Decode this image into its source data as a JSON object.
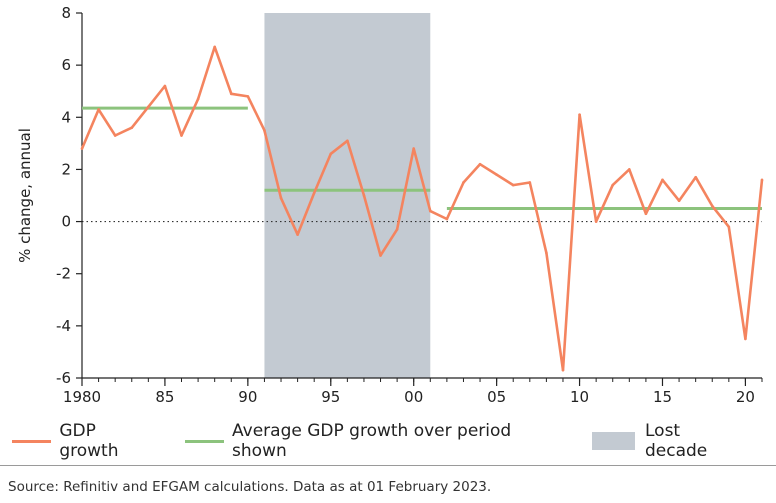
{
  "colors": {
    "gdp": "#f4845f",
    "average": "#8cc37d",
    "shade": "#c3cad2",
    "axis": "#222222"
  },
  "chart_data": {
    "type": "line",
    "ylabel": "% change, annual",
    "ylim": [
      -6,
      8
    ],
    "xlim": [
      1980,
      2021
    ],
    "yticks": [
      -6,
      -4,
      -2,
      0,
      2,
      4,
      6,
      8
    ],
    "xticks": [
      {
        "value": 1980,
        "label": "1980"
      },
      {
        "value": 1985,
        "label": "85"
      },
      {
        "value": 1990,
        "label": "90"
      },
      {
        "value": 1995,
        "label": "95"
      },
      {
        "value": 2000,
        "label": "00"
      },
      {
        "value": 2005,
        "label": "05"
      },
      {
        "value": 2010,
        "label": "10"
      },
      {
        "value": 2015,
        "label": "15"
      },
      {
        "value": 2020,
        "label": "20"
      }
    ],
    "shaded_region": {
      "name": "Lost decade",
      "x_start": 1991,
      "x_end": 2001
    },
    "reference_line": {
      "y": 0,
      "style": "dotted"
    },
    "series": [
      {
        "name": "GDP growth",
        "x": [
          1980,
          1981,
          1982,
          1983,
          1984,
          1985,
          1986,
          1987,
          1988,
          1989,
          1990,
          1991,
          1992,
          1993,
          1994,
          1995,
          1996,
          1997,
          1998,
          1999,
          2000,
          2001,
          2002,
          2003,
          2004,
          2005,
          2006,
          2007,
          2008,
          2009,
          2010,
          2011,
          2012,
          2013,
          2014,
          2015,
          2016,
          2017,
          2018,
          2019,
          2020,
          2021
        ],
        "values": [
          2.8,
          4.3,
          3.3,
          3.6,
          4.4,
          5.2,
          3.3,
          4.7,
          6.7,
          4.9,
          4.8,
          3.5,
          0.9,
          -0.5,
          1.1,
          2.6,
          3.1,
          1.0,
          -1.3,
          -0.3,
          2.8,
          0.4,
          0.1,
          1.5,
          2.2,
          1.8,
          1.4,
          1.5,
          -1.2,
          -5.7,
          4.1,
          0.0,
          1.4,
          2.0,
          0.3,
          1.6,
          0.8,
          1.7,
          0.6,
          -0.2,
          -4.5,
          1.6
        ]
      }
    ],
    "averages": [
      {
        "name": "Average GDP growth over period shown",
        "x_start": 1980,
        "x_end": 1990,
        "value": 4.35
      },
      {
        "name": "Average GDP growth over period shown",
        "x_start": 1991,
        "x_end": 2001,
        "value": 1.2
      },
      {
        "name": "Average GDP growth over period shown",
        "x_start": 2002,
        "x_end": 2021,
        "value": 0.5
      }
    ]
  },
  "legend": {
    "gdp": "GDP growth",
    "average": "Average GDP growth over period shown",
    "shade": "Lost decade"
  },
  "source": "Source: Refinitiv and EFGAM calculations. Data as at 01 February 2023."
}
